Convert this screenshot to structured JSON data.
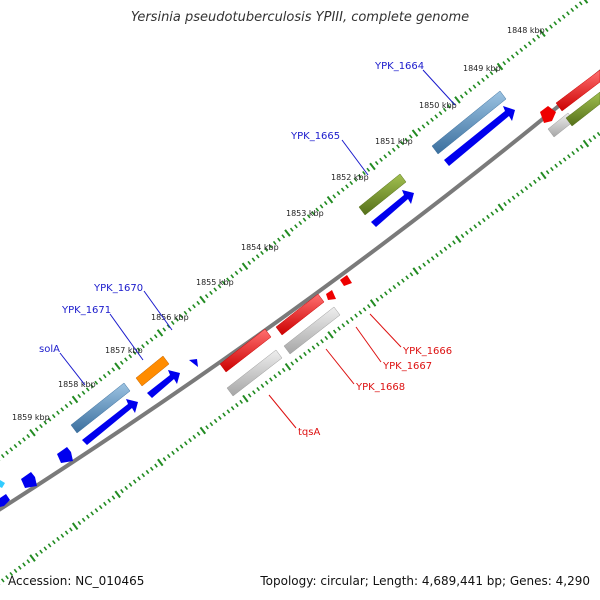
{
  "title": "Yersinia pseudotuberculosis YPIII, complete genome",
  "footer": {
    "accession": "Accession: NC_010465",
    "topology": "Topology: circular; Length: 4,689,441 bp; Genes: 4,290"
  },
  "ticks": [
    "1848 kbp",
    "1849 kbp",
    "1850 kbp",
    "1851 kbp",
    "1852 kbp",
    "1853 kbp",
    "1854 kbp",
    "1855 kbp",
    "1856 kbp",
    "1857 kbp",
    "1858 kbp",
    "1859 kbp"
  ],
  "genes": {
    "ypk1664": "YPK_1664",
    "ypk1665": "YPK_1665",
    "ypk1670": "YPK_1670",
    "ypk1671": "YPK_1671",
    "sola": "solA",
    "ypk1666": "YPK_1666",
    "ypk1667": "YPK_1667",
    "ypk1668": "YPK_1668",
    "tqsa": "tqsA"
  },
  "colors": {
    "forward_label": "#1a1acc",
    "reverse_label": "#dd1111",
    "cds_blue": "#0000ee",
    "cds_steel": "#4f86b6",
    "cds_olive": "#6b8e23",
    "cds_orange": "#ff8c00",
    "cds_red": "#ee0000",
    "cds_gray": "#c0c0c0",
    "backbone": "#777777",
    "tick": "#228b22"
  }
}
